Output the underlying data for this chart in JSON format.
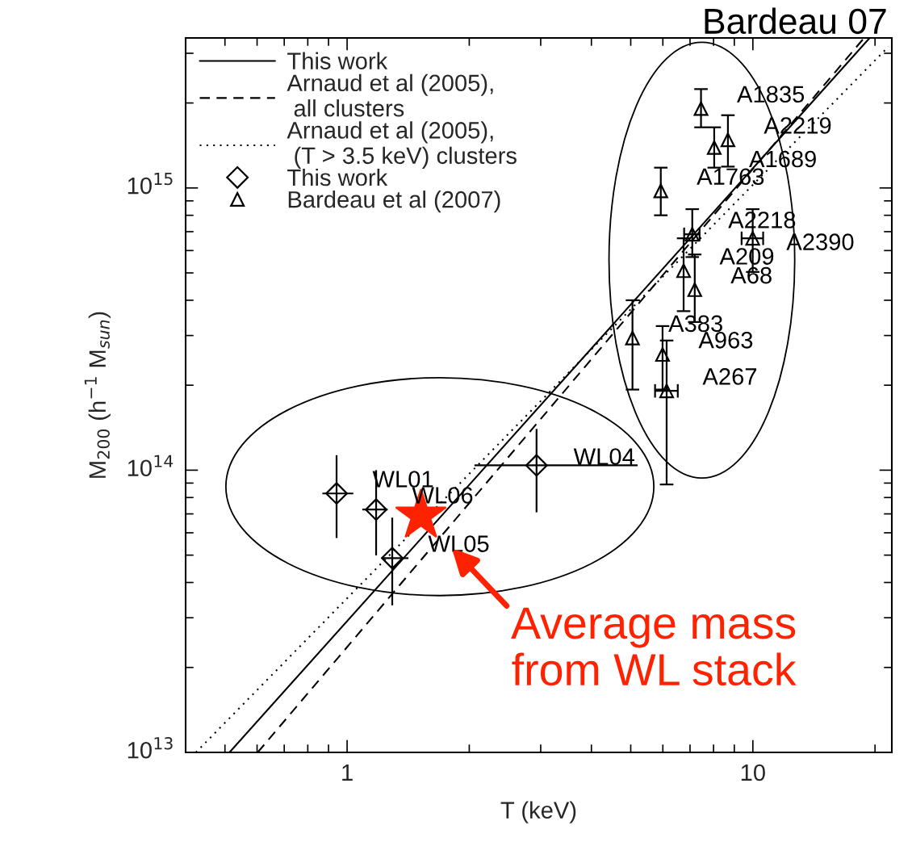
{
  "chart_data": {
    "type": "scatter",
    "xlabel": "T (keV)",
    "ylabel": "M$_{200}$ (h$^{−1}$ M$_{sun}$)",
    "log": "xy",
    "xlim": [
      0.4,
      22
    ],
    "ylim": [
      10000000000000.0,
      3400000000000000.0
    ],
    "xticks": [
      1,
      10
    ],
    "yticks": [
      {
        "value": 10000000000000.0,
        "label": "10$^{13}$"
      },
      {
        "value": 100000000000000.0,
        "label": "10$^{14}$"
      },
      {
        "value": 1000000000000000.0,
        "label": "10$^{15}$"
      }
    ],
    "grid": false,
    "legend": "top left",
    "series": [
      {
        "name": "This work",
        "type": "line",
        "line_style": "solid",
        "color": "#000000",
        "x": [
          0.513,
          19.4
        ],
        "values": [
          10000000000000.0,
          3400000000000000.0
        ]
      },
      {
        "name": "Arnaud et al (2005),\n all clusters",
        "type": "line",
        "line_style": "dashed",
        "color": "#000000",
        "x": [
          0.602,
          18.8
        ],
        "values": [
          10000000000000.0,
          3400000000000000.0
        ]
      },
      {
        "name": "Arnaud et al (2005),\n (T > 3.5 keV) clusters",
        "type": "line",
        "line_style": "dotted",
        "color": "#000000",
        "x": [
          0.424,
          21.6
        ],
        "values": [
          10000000000000.0,
          3170000000000000.0
        ]
      },
      {
        "name": "This work",
        "marker": "diamond",
        "color": "#000000",
        "x": [
          0.942,
          1.179,
          1.292,
          2.93
        ],
        "values": [
          82700000000000.0,
          72500000000000.0,
          48800000000000.0,
          104000000000000.0
        ],
        "errors": [
          [
            57500000000000.0,
            113000000000000.0
          ],
          [
            49900000000000.0,
            100000000000000.0
          ],
          [
            33200000000000.0,
            67900000000000.0
          ],
          [
            70900000000000.0,
            140000000000000.0
          ]
        ],
        "xerrors": [
          [
            0.869,
            1.036
          ],
          [
            1.09,
            1.259
          ],
          [
            1.216,
            1.416
          ],
          [
            2.06,
            5.2
          ]
        ]
      },
      {
        "name": "Bardeau et al (2007)",
        "marker": "triangle",
        "color": "#000000",
        "x": [
          7.45,
          8.68,
          8.03,
          5.93,
          7.09,
          9.99,
          6.75,
          7.19,
          5.05,
          5.99,
          6.13
        ],
        "values": [
          1910000000000000.0,
          1480000000000000.0,
          1390000000000000.0,
          976000000000000.0,
          685000000000000.0,
          663000000000000.0,
          509000000000000.0,
          436000000000000.0,
          294000000000000.0,
          257000000000000.0,
          191000000000000.0
        ],
        "errors": [
          [
            1640000000000000.0,
            2240000000000000.0
          ],
          [
            1190000000000000.0,
            1810000000000000.0
          ],
          [
            1180000000000000.0,
            1640000000000000.0
          ],
          [
            800000000000000.0,
            1180000000000000.0
          ],
          [
            569000000000000.0,
            841000000000000.0
          ],
          [
            504000000000000.0,
            841000000000000.0
          ],
          [
            366000000000000.0,
            663000000000000.0
          ],
          [
            335000000000000.0,
            581000000000000.0
          ],
          [
            193000000000000.0,
            400000000000000.0
          ],
          [
            193000000000000.0,
            324000000000000.0
          ],
          [
            89000000000000.0,
            288000000000000.0
          ]
        ],
        "xerrors": [
          null,
          null,
          null,
          null,
          [
            6.77,
            7.39
          ],
          [
            9.38,
            10.6
          ],
          null,
          null,
          null,
          null,
          [
            5.74,
            6.53
          ]
        ]
      },
      {
        "marker": "star",
        "color": "#ff2200",
        "x": [
          1.52
        ],
        "values": [
          69000000000000.0
        ]
      }
    ],
    "annotations": [
      {
        "text": "A1835",
        "x": 7.45,
        "y": 1910000000000000.0
      },
      {
        "text": "A2219",
        "x": 8.68,
        "y": 1480000000000000.0
      },
      {
        "text": "A1689",
        "x": 8.03,
        "y": 1390000000000000.0
      },
      {
        "text": "A1763",
        "x": 5.93,
        "y": 976000000000000.0
      },
      {
        "text": "A2218",
        "x": 7.09,
        "y": 685000000000000.0
      },
      {
        "text": "A2390",
        "x": 9.99,
        "y": 663000000000000.0
      },
      {
        "text": "A209",
        "x": 6.75,
        "y": 509000000000000.0
      },
      {
        "text": "A68",
        "x": 7.19,
        "y": 436000000000000.0
      },
      {
        "text": "A383",
        "x": 5.05,
        "y": 294000000000000.0
      },
      {
        "text": "A963",
        "x": 5.99,
        "y": 257000000000000.0
      },
      {
        "text": "A267",
        "x": 6.13,
        "y": 191000000000000.0
      },
      {
        "text": "WL01",
        "x": 0.942,
        "y": 82700000000000.0
      },
      {
        "text": "WL06",
        "x": 1.179,
        "y": 72500000000000.0
      },
      {
        "text": "WL05",
        "x": 1.292,
        "y": 48800000000000.0
      },
      {
        "text": "WL04",
        "x": 2.93,
        "y": 104000000000000.0
      },
      "Bardeau 07",
      {
        "text": "Average mass\nfrom WL stack",
        "x": 1.52,
        "y": 69000000000000.0
      }
    ]
  }
}
